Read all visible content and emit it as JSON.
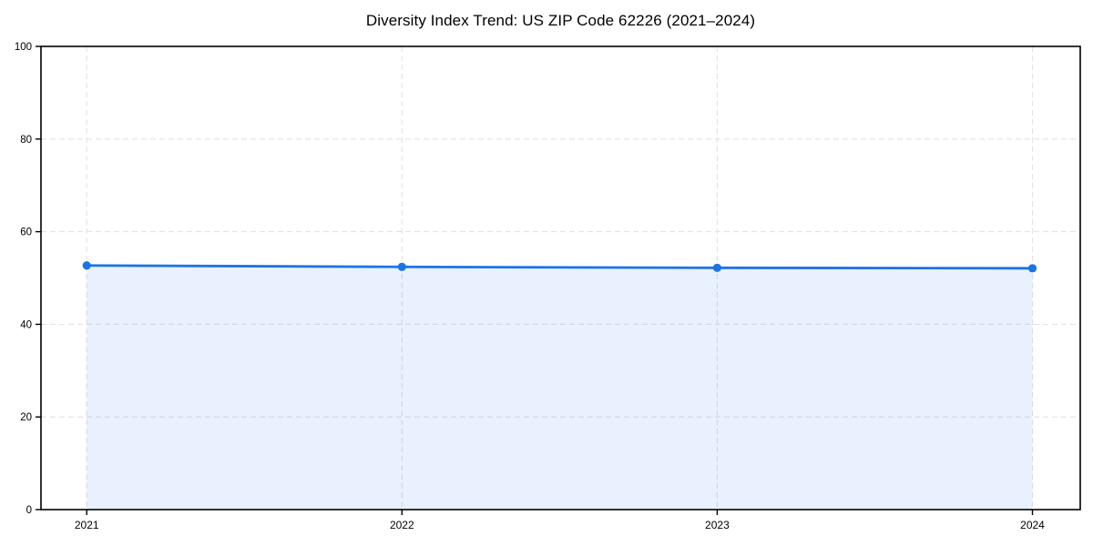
{
  "chart_data": {
    "type": "area",
    "title": "Diversity Index Trend: US ZIP Code 62226 (2021–2024)",
    "x": [
      2021,
      2022,
      2023,
      2024
    ],
    "series": [
      {
        "name": "Diversity Index",
        "values": [
          52.7,
          52.4,
          52.2,
          52.1
        ]
      }
    ],
    "xlabel": "",
    "ylabel": "",
    "xticks": [
      "2021",
      "2022",
      "2023",
      "2024"
    ],
    "yticks": [
      0,
      20,
      40,
      60,
      80,
      100
    ],
    "ylim": [
      0,
      100
    ],
    "grid": true,
    "grid_style": "dashed",
    "legend": false,
    "colors": {
      "line": "#1a73e8",
      "marker": "#1a73e8",
      "fill": "rgba(26,115,232,0.10)",
      "grid": "#e2e2e2",
      "spine": "#000000",
      "tick_label": "#000000"
    }
  }
}
